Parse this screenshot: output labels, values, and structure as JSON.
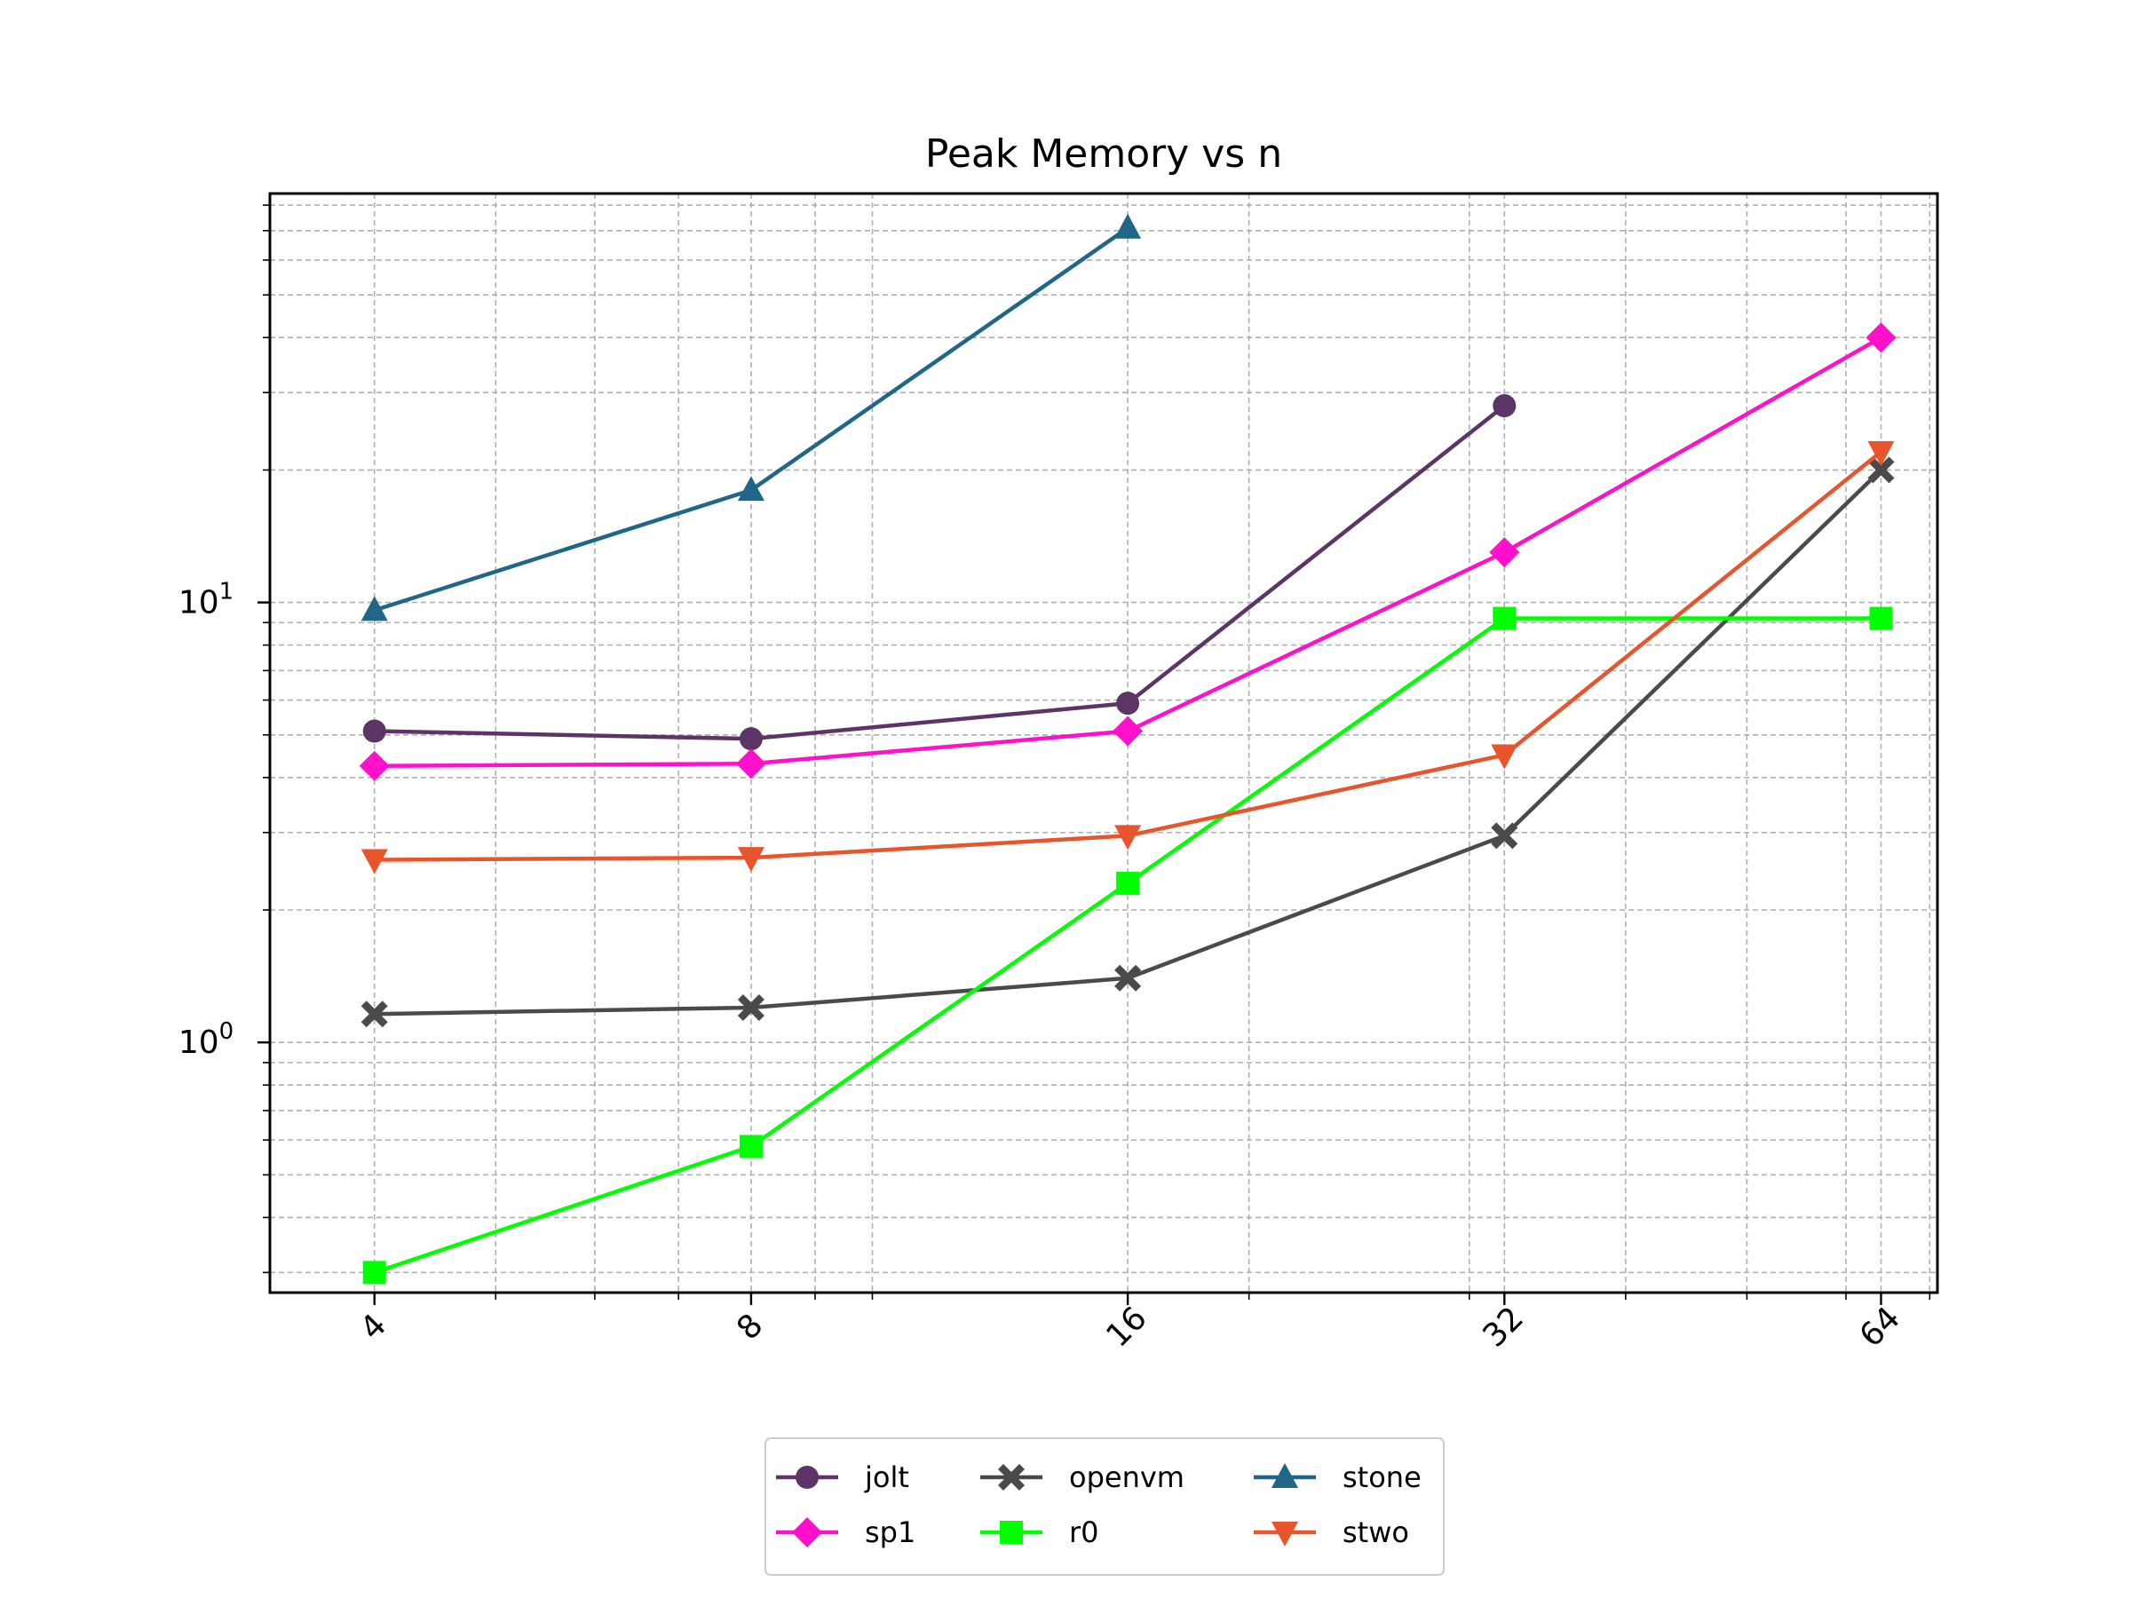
{
  "chart_data": {
    "type": "line",
    "title": "Peak Memory vs n",
    "xlabel": "",
    "ylabel": "",
    "x_scale": "log2",
    "y_scale": "log10",
    "x": [
      4,
      8,
      16,
      32,
      64
    ],
    "x_tick_labels": [
      "4",
      "8",
      "16",
      "32",
      "64"
    ],
    "xlim": [
      3.3,
      71
    ],
    "ylim": [
      0.27,
      85
    ],
    "grid": true,
    "legend_position": "bottom-center",
    "series": [
      {
        "name": "jolt",
        "color": "#5c3566",
        "marker": "circle",
        "values": [
          5.1,
          4.9,
          5.9,
          28,
          null
        ]
      },
      {
        "name": "sp1",
        "color": "#ff11cc",
        "marker": "diamond",
        "values": [
          4.25,
          4.3,
          5.1,
          13,
          40
        ]
      },
      {
        "name": "openvm",
        "color": "#4a4a4a",
        "marker": "x",
        "values": [
          1.16,
          1.2,
          1.4,
          2.95,
          20
        ]
      },
      {
        "name": "r0",
        "color": "#00ff00",
        "marker": "square",
        "values": [
          0.3,
          0.58,
          2.3,
          9.2,
          9.2
        ]
      },
      {
        "name": "stone",
        "color": "#1f6687",
        "marker": "triangle-up",
        "values": [
          9.6,
          18,
          71,
          null,
          null
        ]
      },
      {
        "name": "stwo",
        "color": "#e8552d",
        "marker": "triangle-down",
        "values": [
          2.6,
          2.63,
          2.95,
          4.5,
          22
        ]
      }
    ],
    "y_tick_labels": [
      {
        "value": 1,
        "base": "10",
        "exp": "0"
      },
      {
        "value": 10,
        "base": "10",
        "exp": "1"
      }
    ]
  }
}
